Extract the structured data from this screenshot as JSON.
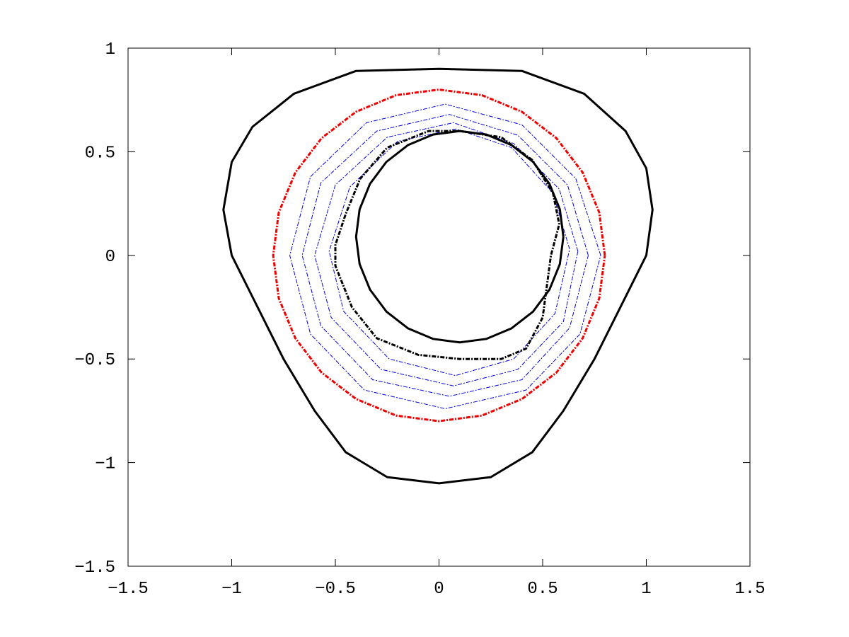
{
  "chart_data": {
    "type": "line",
    "xlim": [
      -1.5,
      1.5
    ],
    "ylim": [
      -1.5,
      1
    ],
    "xticks": [
      {
        "value": -1.5,
        "label": "−1.5"
      },
      {
        "value": -1,
        "label": "−1"
      },
      {
        "value": -0.5,
        "label": "−0.5"
      },
      0,
      0.5,
      1,
      1.5
    ],
    "yticks": [
      {
        "value": -1.5,
        "label": "−1.5"
      },
      {
        "value": -1,
        "label": "−1"
      },
      {
        "value": -0.5,
        "label": "−0.5"
      },
      0,
      0.5,
      1
    ],
    "series": [
      {
        "color": "#000000",
        "dash": "solid",
        "width": 3,
        "x": [
          0,
          0.4,
          0.7,
          0.9,
          1.0,
          1.03,
          1.0,
          0.9,
          0.75,
          0.6,
          0.45,
          0.25,
          0,
          -0.25,
          -0.45,
          -0.6,
          -0.75,
          -0.9,
          -1.0,
          -1.04,
          -1.0,
          -0.9,
          -0.7,
          -0.4,
          0
        ],
        "values": [
          0.9,
          0.89,
          0.78,
          0.6,
          0.42,
          0.22,
          0.0,
          -0.2,
          -0.5,
          -0.75,
          -0.95,
          -1.07,
          -1.1,
          -1.07,
          -0.95,
          -0.75,
          -0.5,
          -0.2,
          0.0,
          0.22,
          0.45,
          0.62,
          0.78,
          0.89,
          0.9
        ]
      },
      {
        "color": "#0000dd",
        "dash": "dashdot",
        "width": 1,
        "x": [
          0.78,
          0.66,
          0.4,
          0.03,
          -0.35,
          -0.62,
          -0.72,
          -0.62,
          -0.36,
          0.03,
          0.42,
          0.68,
          0.78
        ],
        "values": [
          0,
          0.37,
          0.63,
          0.73,
          0.64,
          0.38,
          0.0,
          -0.38,
          -0.65,
          -0.74,
          -0.65,
          -0.38,
          0
        ]
      },
      {
        "color": "#0000dd",
        "dash": "dashdot",
        "width": 1,
        "x": [
          0.72,
          0.62,
          0.38,
          0.05,
          -0.3,
          -0.57,
          -0.66,
          -0.57,
          -0.32,
          0.05,
          0.4,
          0.63,
          0.72
        ],
        "values": [
          0,
          0.34,
          0.58,
          0.68,
          0.6,
          0.35,
          0.0,
          -0.34,
          -0.6,
          -0.68,
          -0.6,
          -0.35,
          0
        ]
      },
      {
        "color": "#0000dd",
        "dash": "dashdot",
        "width": 1,
        "x": [
          0.67,
          0.58,
          0.36,
          0.07,
          -0.25,
          -0.5,
          -0.6,
          -0.52,
          -0.28,
          0.07,
          0.38,
          0.6,
          0.67
        ],
        "values": [
          0.02,
          0.32,
          0.54,
          0.64,
          0.57,
          0.34,
          0.0,
          -0.3,
          -0.55,
          -0.63,
          -0.55,
          -0.32,
          0.02
        ]
      },
      {
        "color": "#0000dd",
        "dash": "dashdot",
        "width": 1,
        "x": [
          0.63,
          0.55,
          0.35,
          0.08,
          -0.2,
          -0.43,
          -0.53,
          -0.46,
          -0.24,
          0.08,
          0.36,
          0.56,
          0.63
        ],
        "values": [
          0.03,
          0.3,
          0.52,
          0.61,
          0.55,
          0.33,
          0.02,
          -0.27,
          -0.5,
          -0.58,
          -0.5,
          -0.28,
          0.03
        ]
      },
      {
        "color": "#ee0000",
        "dash": "dashdot",
        "width": 3,
        "x": [
          0.8,
          0.773,
          0.693,
          0.566,
          0.4,
          0.207,
          0,
          -0.207,
          -0.4,
          -0.566,
          -0.693,
          -0.773,
          -0.8,
          -0.773,
          -0.693,
          -0.566,
          -0.4,
          -0.207,
          0,
          0.207,
          0.4,
          0.566,
          0.693,
          0.773,
          0.8
        ],
        "values": [
          0,
          0.207,
          0.4,
          0.566,
          0.693,
          0.773,
          0.8,
          0.773,
          0.693,
          0.566,
          0.4,
          0.207,
          0,
          -0.207,
          -0.4,
          -0.566,
          -0.693,
          -0.773,
          -0.8,
          -0.773,
          -0.693,
          -0.566,
          -0.4,
          -0.207,
          0
        ]
      },
      {
        "color": "#000000",
        "dash": "dashdot",
        "width": 3,
        "x": [
          0.1,
          0.3,
          0.45,
          0.55,
          0.58,
          0.54,
          0.52,
          0.5,
          0.42,
          0.3,
          0.1,
          -0.1,
          -0.3,
          -0.42,
          -0.5,
          -0.5,
          -0.45,
          -0.38,
          -0.25,
          -0.05,
          0.1
        ],
        "values": [
          0.6,
          0.57,
          0.46,
          0.3,
          0.15,
          0.0,
          -0.15,
          -0.3,
          -0.45,
          -0.5,
          -0.5,
          -0.48,
          -0.4,
          -0.25,
          -0.05,
          0.05,
          0.2,
          0.37,
          0.52,
          0.6,
          0.6
        ]
      },
      {
        "color": "#000000",
        "dash": "solid",
        "width": 3,
        "x": [
          0.6,
          0.583,
          0.533,
          0.454,
          0.35,
          0.229,
          0.1,
          -0.029,
          -0.15,
          -0.254,
          -0.333,
          -0.383,
          -0.4,
          -0.383,
          -0.333,
          -0.254,
          -0.15,
          -0.029,
          0.1,
          0.229,
          0.35,
          0.454,
          0.533,
          0.583,
          0.6
        ],
        "values": [
          0.09,
          0.222,
          0.345,
          0.451,
          0.532,
          0.583,
          0.6,
          0.583,
          0.532,
          0.451,
          0.345,
          0.222,
          0.09,
          -0.042,
          -0.165,
          -0.271,
          -0.352,
          -0.403,
          -0.42,
          -0.403,
          -0.352,
          -0.271,
          -0.165,
          -0.042,
          0.09
        ]
      }
    ]
  }
}
